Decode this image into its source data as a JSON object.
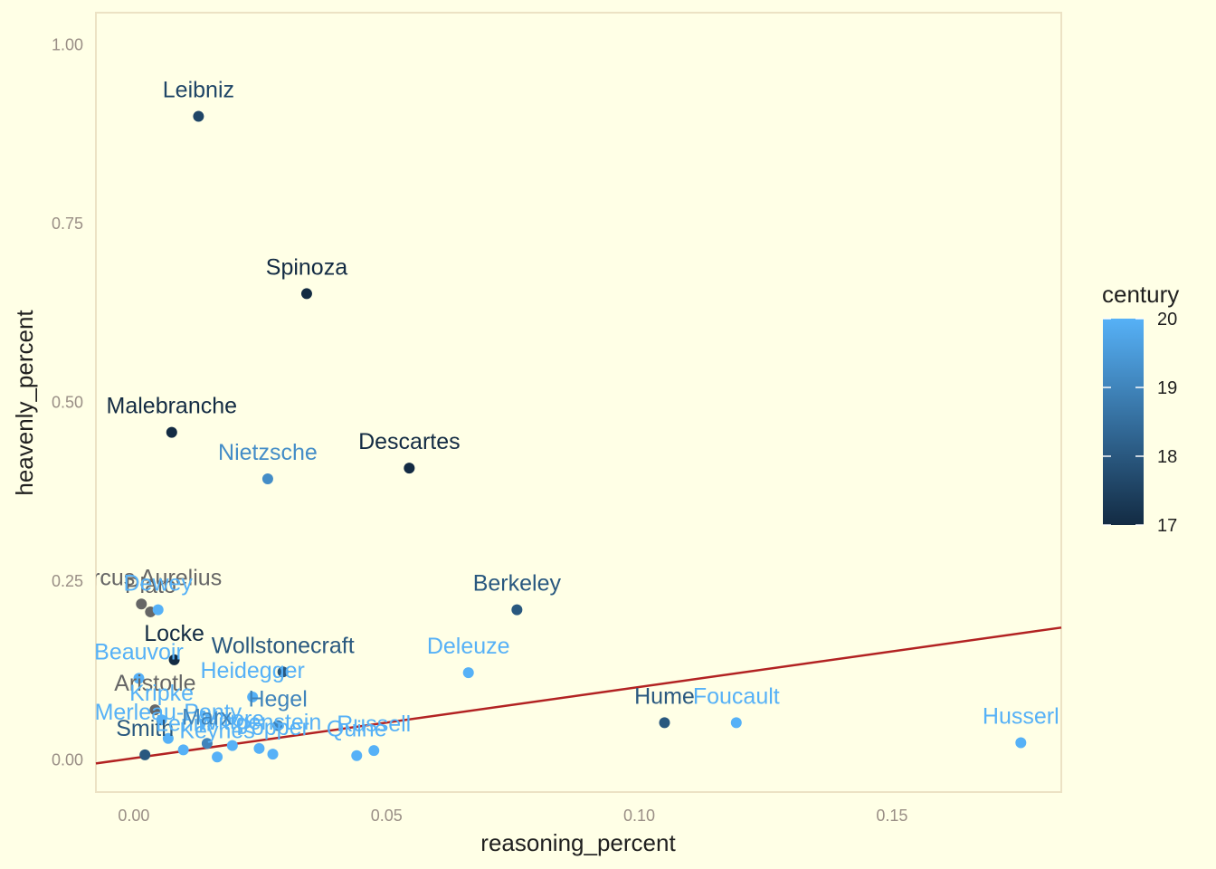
{
  "chart_data": {
    "type": "scatter",
    "xlabel": "reasoning_percent",
    "ylabel": "heavenly_percent",
    "xlim": [
      -0.0075,
      0.1835
    ],
    "ylim": [
      -0.045,
      1.045
    ],
    "x_ticks": [
      "0.00",
      "0.05",
      "0.10",
      "0.15"
    ],
    "x_tick_values": [
      0.0,
      0.05,
      0.1,
      0.15
    ],
    "y_ticks": [
      "0.00",
      "0.25",
      "0.50",
      "0.75",
      "1.00"
    ],
    "y_tick_values": [
      0.0,
      0.25,
      0.5,
      0.75,
      1.0
    ],
    "grid": false,
    "legend": {
      "title": "century",
      "position": "right",
      "ticks": [
        "17",
        "18",
        "19",
        "20"
      ],
      "tick_values": [
        17,
        18,
        19,
        20
      ],
      "color_low": "#132B43",
      "color_high": "#56B1F7"
    },
    "na_color": "#666666",
    "trend_line": {
      "color": "#B22222",
      "x": [
        -0.0075,
        0.1835
      ],
      "y": [
        -0.005,
        0.185
      ]
    },
    "points": [
      {
        "label": "Leibniz",
        "x": 0.0128,
        "y": 0.9,
        "century": 17.6
      },
      {
        "label": "Spinoza",
        "x": 0.0342,
        "y": 0.652,
        "century": 17
      },
      {
        "label": "Malebranche",
        "x": 0.0075,
        "y": 0.458,
        "century": 17
      },
      {
        "label": "Descartes",
        "x": 0.0545,
        "y": 0.408,
        "century": 17
      },
      {
        "label": "Nietzsche",
        "x": 0.0265,
        "y": 0.393,
        "century": 19.2
      },
      {
        "label": "Berkeley",
        "x": 0.0758,
        "y": 0.21,
        "century": 18
      },
      {
        "label": "Marcus Aurelius",
        "x": 0.0015,
        "y": 0.218,
        "century": null
      },
      {
        "label": "Plato",
        "x": 0.0033,
        "y": 0.207,
        "century": null
      },
      {
        "label": "Dewey",
        "x": 0.0048,
        "y": 0.21,
        "century": 20
      },
      {
        "label": "Locke",
        "x": 0.008,
        "y": 0.14,
        "century": 17
      },
      {
        "label": "Wollstonecraft",
        "x": 0.0295,
        "y": 0.123,
        "century": 18
      },
      {
        "label": "Beauvoir",
        "x": 0.001,
        "y": 0.114,
        "century": 20
      },
      {
        "label": "Heidegger",
        "x": 0.0235,
        "y": 0.088,
        "century": 20
      },
      {
        "label": "Deleuze",
        "x": 0.0662,
        "y": 0.122,
        "century": 20
      },
      {
        "label": "Aristotle",
        "x": 0.0042,
        "y": 0.07,
        "century": null
      },
      {
        "label": "Kripke",
        "x": 0.0055,
        "y": 0.056,
        "century": 20
      },
      {
        "label": "Hegel",
        "x": 0.0285,
        "y": 0.048,
        "century": 19
      },
      {
        "label": "Hume",
        "x": 0.105,
        "y": 0.052,
        "century": 18
      },
      {
        "label": "Foucault",
        "x": 0.1192,
        "y": 0.052,
        "century": 20
      },
      {
        "label": "Merleau-Ponty",
        "x": 0.0068,
        "y": 0.03,
        "century": 20
      },
      {
        "label": "Wittgenstein",
        "x": 0.0248,
        "y": 0.016,
        "century": 20
      },
      {
        "label": "Russell",
        "x": 0.0475,
        "y": 0.013,
        "century": 20
      },
      {
        "label": "Popper",
        "x": 0.0275,
        "y": 0.008,
        "century": 20
      },
      {
        "label": "Quine",
        "x": 0.0441,
        "y": 0.006,
        "century": 20
      },
      {
        "label": "Keynes",
        "x": 0.0165,
        "y": 0.004,
        "century": 20
      },
      {
        "label": "Moore",
        "x": 0.0195,
        "y": 0.02,
        "century": 20
      },
      {
        "label": "Smith",
        "x": 0.0022,
        "y": 0.007,
        "century": 18
      },
      {
        "label": "Lenin",
        "x": 0.0098,
        "y": 0.014,
        "century": 20
      },
      {
        "label": "Marx",
        "x": 0.0145,
        "y": 0.023,
        "century": 19
      },
      {
        "label": "Husserl",
        "x": 0.1755,
        "y": 0.024,
        "century": 20
      }
    ]
  }
}
